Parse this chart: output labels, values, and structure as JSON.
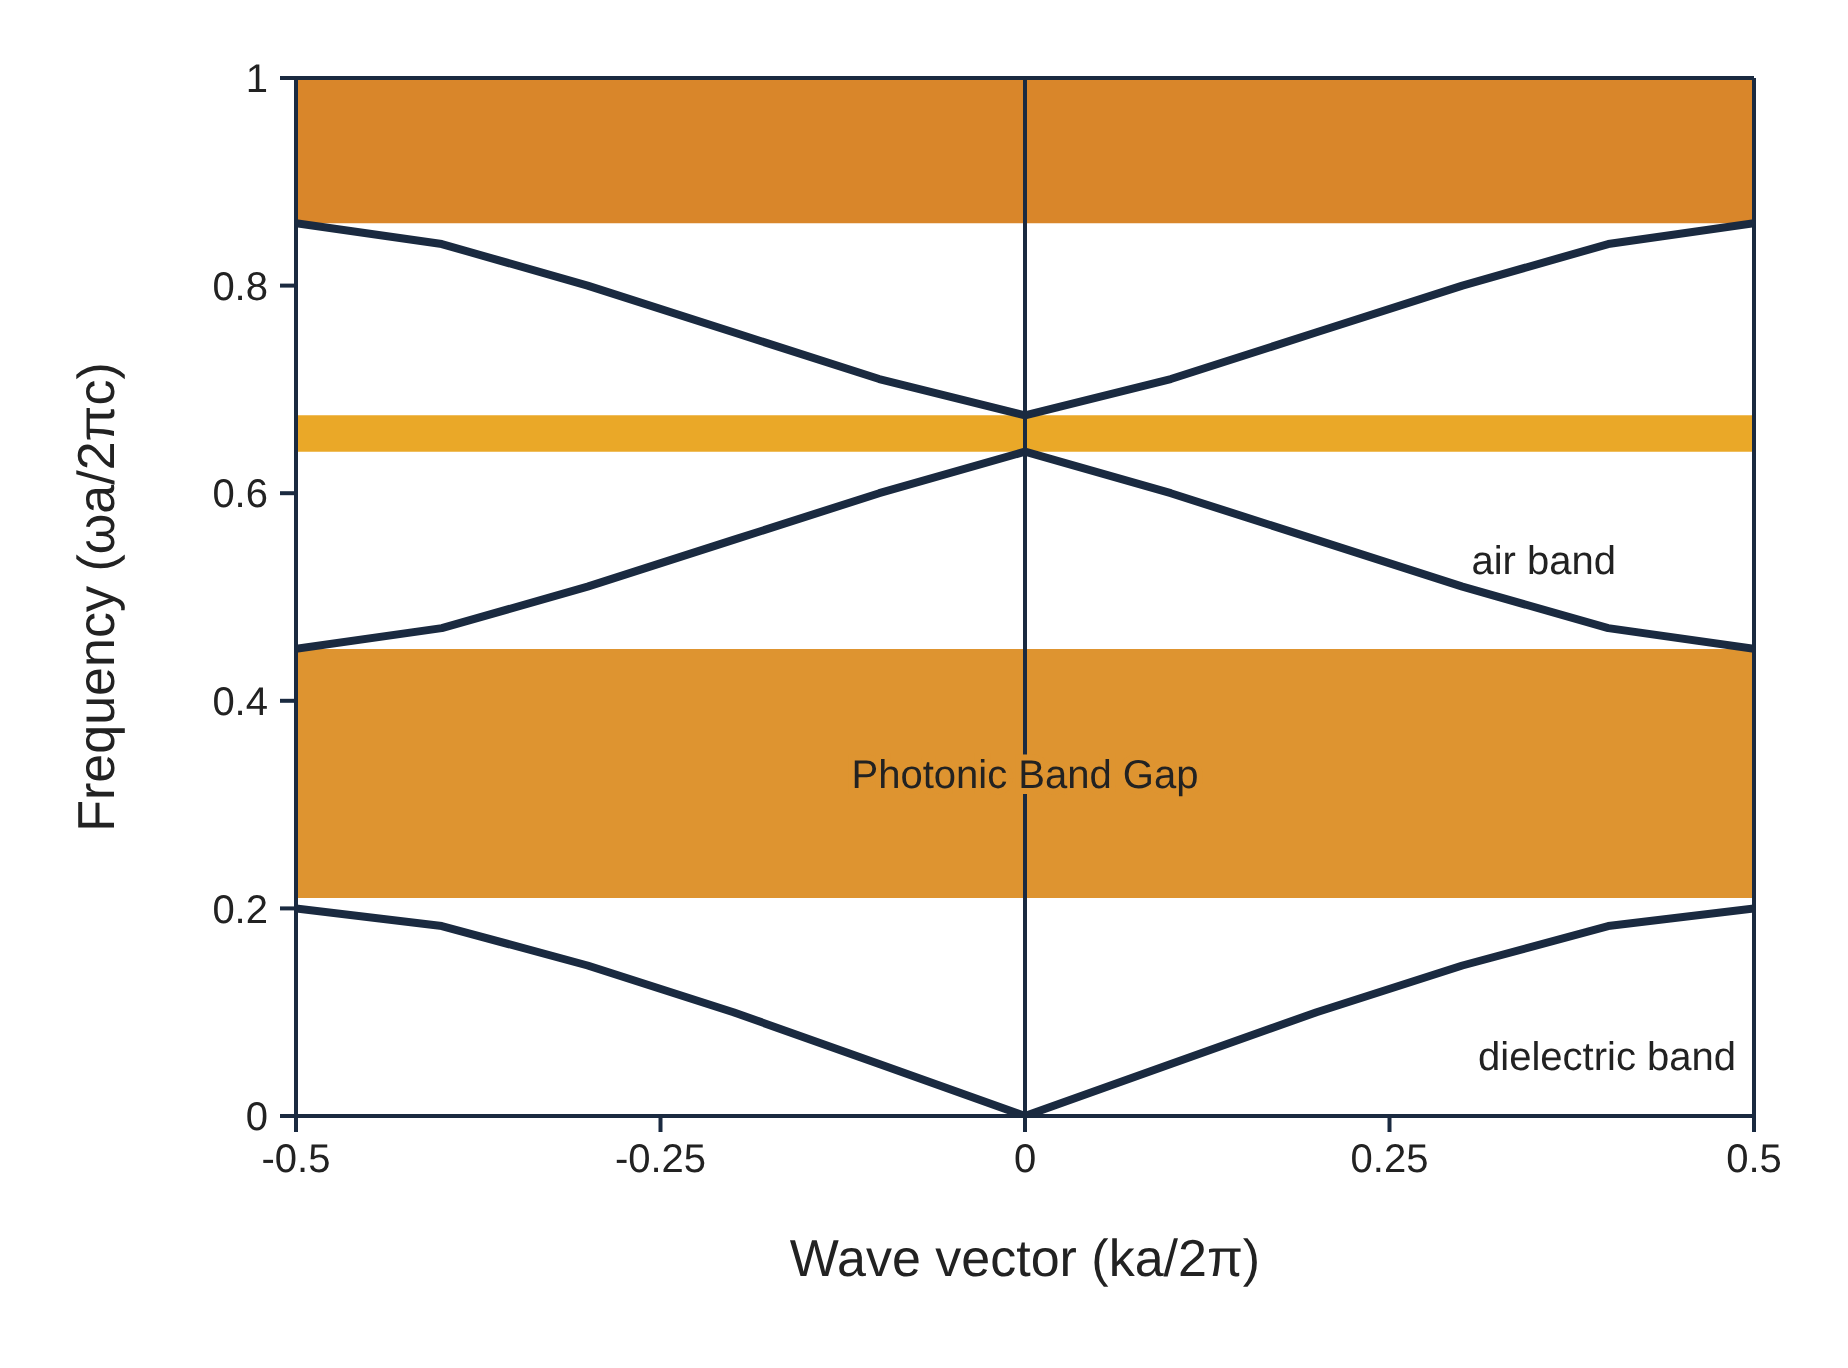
{
  "chart_data": {
    "type": "line",
    "xlabel": "Wave vector (ka/2π)",
    "ylabel": "Frequency (ωa/2πc)",
    "xlim": [
      -0.5,
      0.5
    ],
    "xticks": [
      -0.5,
      -0.25,
      0,
      0.25,
      0.5
    ],
    "ylim": [
      0,
      1
    ],
    "yticks": [
      0,
      0.2,
      0.4,
      0.6,
      0.8,
      1
    ],
    "grid": false,
    "legend": false,
    "marker": "none",
    "line_style": "solid",
    "series": [
      {
        "color": "#1a2a40",
        "x": [
          -0.5,
          -0.4,
          -0.3,
          -0.2,
          -0.1,
          0,
          0.1,
          0.2,
          0.3,
          0.4,
          0.5
        ],
        "values": [
          0.2,
          0.183,
          0.145,
          0.1,
          0.05,
          0,
          0.05,
          0.1,
          0.145,
          0.183,
          0.2
        ]
      },
      {
        "color": "#1a2a40",
        "x": [
          -0.5,
          -0.4,
          -0.3,
          -0.2,
          -0.1,
          0,
          0.1,
          0.2,
          0.3,
          0.4,
          0.5
        ],
        "values": [
          0.45,
          0.47,
          0.51,
          0.555,
          0.6,
          0.64,
          0.6,
          0.555,
          0.51,
          0.47,
          0.45
        ]
      },
      {
        "color": "#1a2a40",
        "x": [
          -0.5,
          -0.4,
          -0.3,
          -0.2,
          -0.1,
          0,
          0.1,
          0.2,
          0.3,
          0.4,
          0.5
        ],
        "values": [
          0.86,
          0.84,
          0.8,
          0.755,
          0.71,
          0.675,
          0.71,
          0.755,
          0.8,
          0.84,
          0.86
        ]
      }
    ],
    "bands": [
      {
        "axis": "y",
        "from": 0.86,
        "to": 1,
        "color": "#d9862a"
      },
      {
        "axis": "y",
        "from": 0.64,
        "to": 0.675,
        "color": "#eaa828"
      },
      {
        "axis": "y",
        "from": 0.21,
        "to": 0.45,
        "color": "#de9430"
      }
    ],
    "ref_lines": [
      {
        "axis": "x",
        "value": 0,
        "color": "#1a2a40"
      }
    ],
    "annotations": [
      {
        "text": "Photonic Band Gap",
        "x": 0,
        "y": 0.33
      },
      "air band",
      "dielectric band"
    ]
  }
}
